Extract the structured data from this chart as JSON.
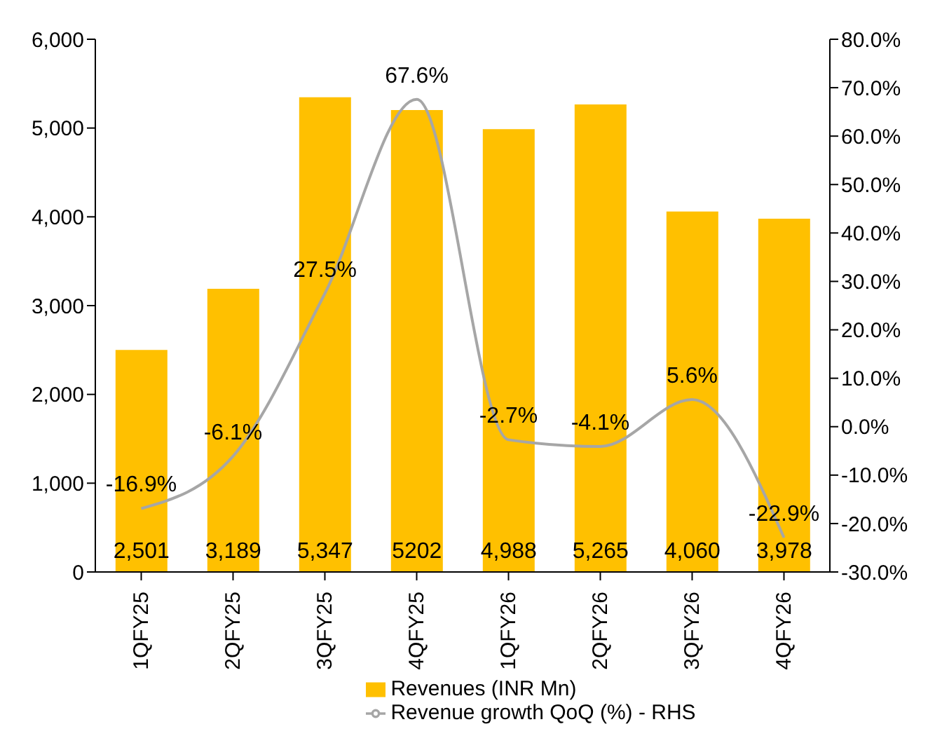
{
  "chart_data": {
    "type": "bar",
    "categories": [
      "1QFY25",
      "2QFY25",
      "3QFY25",
      "4QFY25",
      "1QFY26",
      "2QFY26",
      "3QFY26",
      "4QFY26"
    ],
    "series": [
      {
        "name": "Revenues (INR Mn)",
        "color": "#ffc000",
        "values": [
          2501,
          3189,
          5347,
          5202,
          4988,
          5265,
          4060,
          3978
        ],
        "value_labels": [
          "2,501",
          "3,189",
          "5,347",
          "5202",
          "4,988",
          "5,265",
          "4,060",
          "3,978"
        ]
      },
      {
        "name": "Revenue growth QoQ (%) - RHS",
        "type": "line",
        "axis": "y2",
        "color": "#a6a6a6",
        "values": [
          -16.9,
          -6.1,
          27.5,
          67.6,
          -2.7,
          -4.1,
          5.6,
          -22.9
        ],
        "value_labels": [
          "-16.9%",
          "-6.1%",
          "27.5%",
          "67.6%",
          "-2.7%",
          "-4.1%",
          "5.6%",
          "-22.9%"
        ]
      }
    ],
    "ylim": [
      0,
      6000
    ],
    "yticks": [
      0,
      {
        "value": 1000,
        "label": "1,000"
      },
      {
        "value": 2000,
        "label": "2,000"
      },
      {
        "value": 3000,
        "label": "3,000"
      },
      {
        "value": 4000,
        "label": "4,000"
      },
      {
        "value": 5000,
        "label": "5,000"
      },
      {
        "value": 6000,
        "label": "6,000"
      }
    ],
    "y2lim": [
      -30,
      80
    ],
    "y2ticks": [
      {
        "value": -30,
        "label": "-30.0%"
      },
      {
        "value": -20,
        "label": "-20.0%"
      },
      {
        "value": -10,
        "label": "-10.0%"
      },
      {
        "value": 0,
        "label": "0.0%"
      },
      {
        "value": 10,
        "label": "10.0%"
      },
      {
        "value": 20,
        "label": "20.0%"
      },
      {
        "value": 30,
        "label": "30.0%"
      },
      {
        "value": 40,
        "label": "40.0%"
      },
      {
        "value": 50,
        "label": "50.0%"
      },
      {
        "value": 60,
        "label": "60.0%"
      },
      {
        "value": 70,
        "label": "70.0%"
      },
      {
        "value": 80,
        "label": "80.0%"
      }
    ],
    "grid": false,
    "legend": "bottom",
    "marker": "none",
    "line_style": "solid"
  }
}
